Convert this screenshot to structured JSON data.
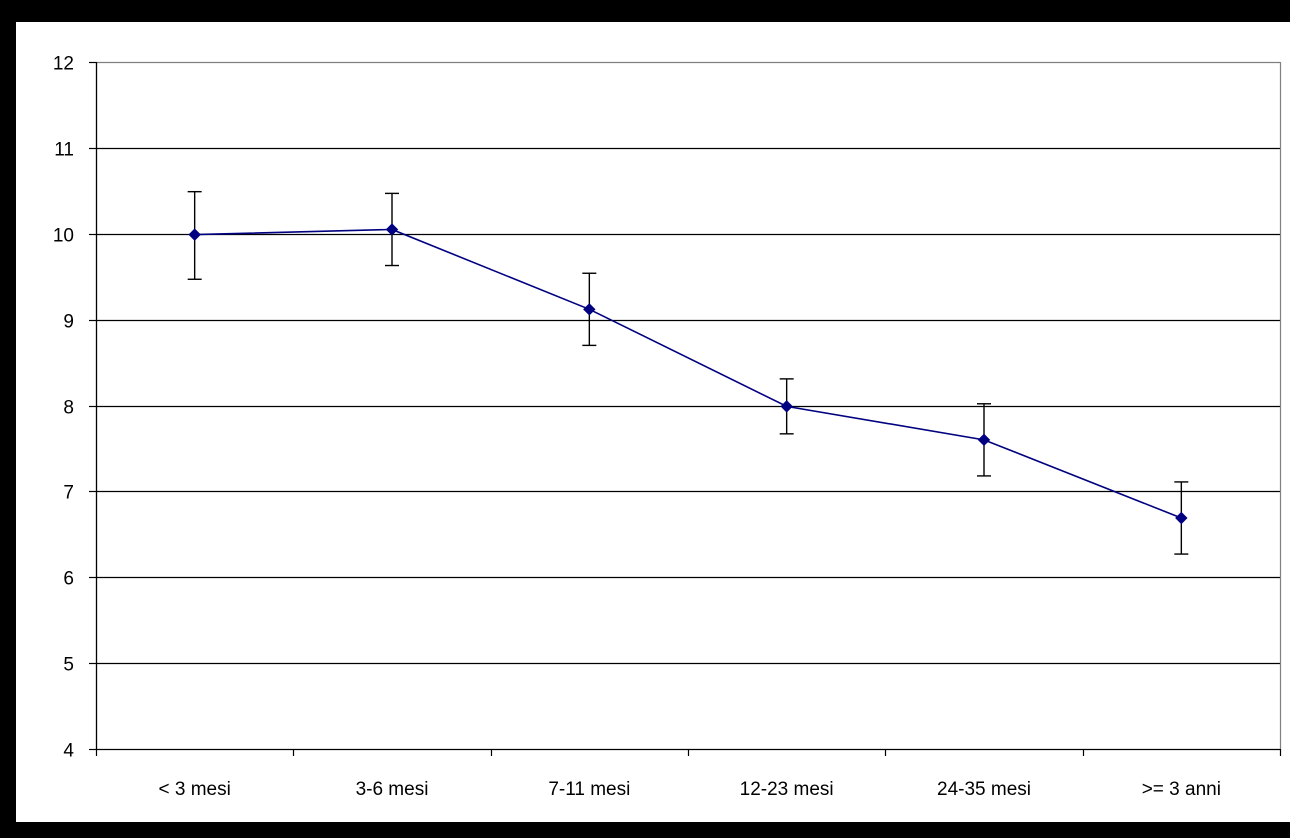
{
  "chart_data": {
    "type": "line",
    "title": "",
    "xlabel": "",
    "ylabel": "",
    "ylim": [
      4,
      12
    ],
    "yticks": [
      4,
      5,
      6,
      7,
      8,
      9,
      10,
      11,
      12
    ],
    "grid": true,
    "categories": [
      "< 3 mesi",
      "3-6 mesi",
      "7-11 mesi",
      "12-23 mesi",
      "24-35 mesi",
      ">= 3 anni"
    ],
    "series": [
      {
        "values": [
          9.99,
          10.05,
          9.12,
          7.99,
          7.6,
          6.69
        ],
        "error_low": [
          9.47,
          9.63,
          8.7,
          7.67,
          7.18,
          6.27
        ],
        "error_high": [
          10.49,
          10.47,
          9.54,
          8.31,
          8.02,
          7.11
        ]
      }
    ],
    "colors": {
      "line": "#000080",
      "marker": "#000080",
      "error": "#000000",
      "grid": "#000000",
      "frame": "#000000"
    }
  }
}
